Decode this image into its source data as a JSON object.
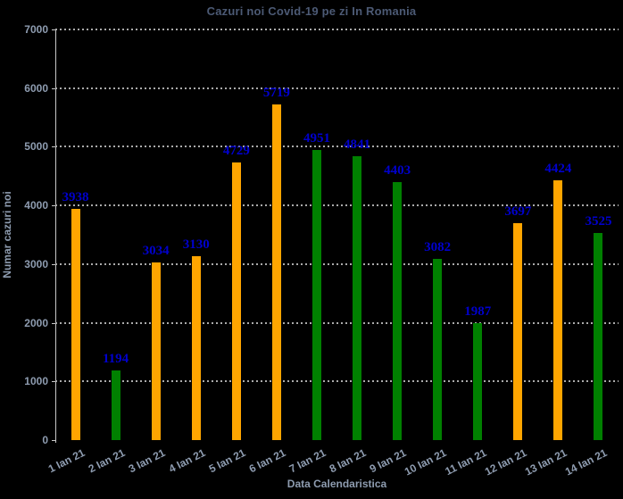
{
  "chart_data": {
    "type": "bar",
    "title": "Cazuri noi Covid-19 pe zi In Romania",
    "xlabel": "Data Calendaristica",
    "ylabel": "Numar cazuri noi",
    "categories": [
      "1 Ian 21",
      "2 Ian 21",
      "3 Ian 21",
      "4 Ian 21",
      "5 Ian 21",
      "6 Ian 21",
      "7 Ian 21",
      "8 Ian 21",
      "9 Ian 21",
      "10 Ian 21",
      "11 Ian 21",
      "12 Ian 21",
      "13 Ian 21",
      "14 Ian 21"
    ],
    "values": [
      3938,
      1194,
      3034,
      3130,
      4729,
      5719,
      4951,
      4841,
      4403,
      3082,
      1987,
      3697,
      4424,
      3525
    ],
    "bar_colors": [
      "orange",
      "green",
      "orange",
      "orange",
      "orange",
      "orange",
      "green",
      "green",
      "green",
      "green",
      "green",
      "orange",
      "orange",
      "green"
    ],
    "value_labels_shown": true,
    "ylim": [
      0,
      7000
    ],
    "ytick_step": 1000,
    "grid": "horizontal-dotted",
    "legend": "none"
  },
  "colors": {
    "background": "#000000",
    "orange": "#ffa500",
    "green": "#008000",
    "value_label": "#0000cd",
    "title_text": "#4c5a75",
    "axis_text": "#8e9cb0",
    "gridline": "#aaaaaa",
    "spine": "#c8c8c8"
  }
}
